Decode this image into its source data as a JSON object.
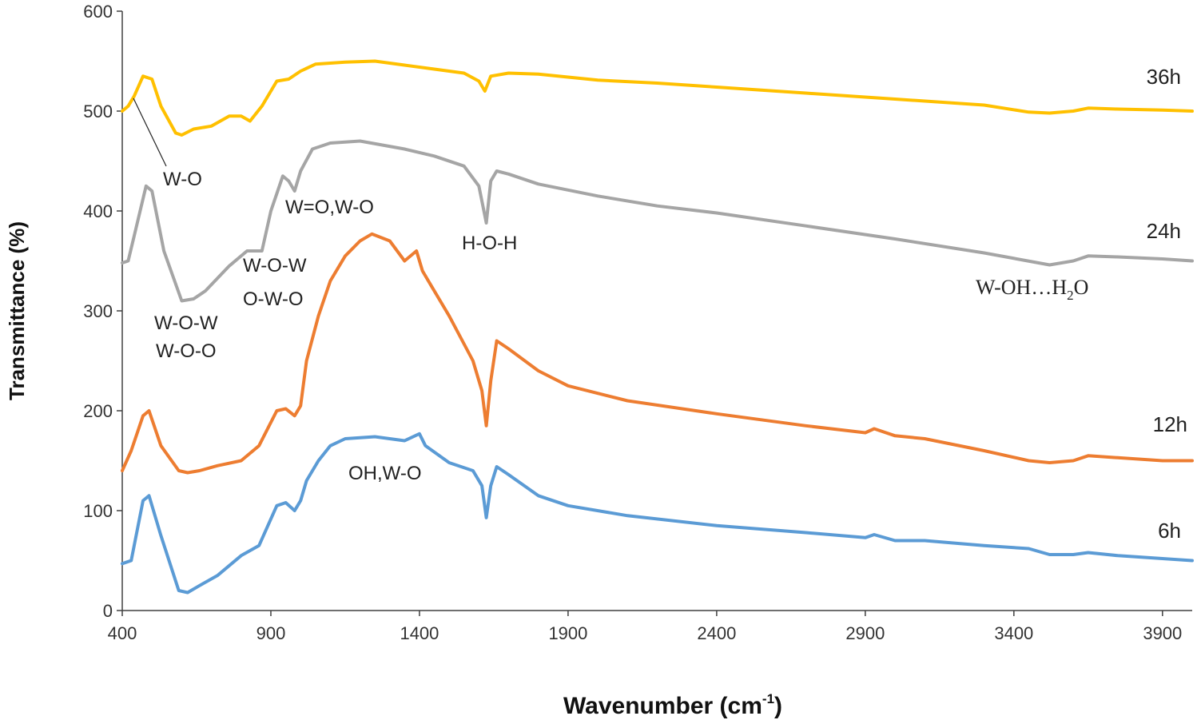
{
  "chart_data": {
    "type": "line",
    "xlabel": "Wavenumber (cm",
    "xlabel_sup": "-1",
    "xlabel_end": ")",
    "ylabel": "Transmittance (%)",
    "xlim": [
      400,
      4000
    ],
    "ylim": [
      0,
      600
    ],
    "xticks": [
      "400",
      "900",
      "1400",
      "1900",
      "2400",
      "2900",
      "3400",
      "3900"
    ],
    "yticks": [
      "0",
      "100",
      "200",
      "300",
      "400",
      "500",
      "600"
    ],
    "grid": false,
    "colors": {
      "6h": "#5b9bd5",
      "12h": "#ed7d31",
      "24h": "#a5a5a5",
      "36h": "#ffc000"
    },
    "series": [
      {
        "name": "6h",
        "x": [
          400,
          430,
          470,
          490,
          530,
          590,
          620,
          660,
          720,
          800,
          860,
          920,
          950,
          980,
          1000,
          1020,
          1060,
          1100,
          1150,
          1250,
          1350,
          1400,
          1420,
          1500,
          1580,
          1610,
          1625,
          1640,
          1660,
          1700,
          1800,
          1900,
          2100,
          2400,
          2700,
          2900,
          2930,
          3000,
          3100,
          3300,
          3450,
          3520,
          3600,
          3650,
          3750,
          3900,
          4000
        ],
        "y": [
          47,
          50,
          110,
          115,
          75,
          20,
          18,
          25,
          35,
          55,
          65,
          105,
          108,
          100,
          110,
          130,
          150,
          165,
          172,
          174,
          170,
          177,
          165,
          148,
          140,
          125,
          93,
          125,
          144,
          136,
          115,
          105,
          95,
          85,
          78,
          73,
          76,
          70,
          70,
          65,
          62,
          56,
          56,
          58,
          55,
          52,
          50
        ]
      },
      {
        "name": "12h",
        "x": [
          400,
          430,
          470,
          490,
          530,
          590,
          620,
          660,
          720,
          800,
          860,
          920,
          950,
          980,
          1000,
          1020,
          1060,
          1100,
          1150,
          1200,
          1240,
          1300,
          1350,
          1390,
          1410,
          1440,
          1500,
          1580,
          1610,
          1625,
          1640,
          1660,
          1700,
          1800,
          1900,
          2100,
          2400,
          2700,
          2900,
          2930,
          3000,
          3100,
          3300,
          3450,
          3520,
          3600,
          3650,
          3750,
          3900,
          4000
        ],
        "y": [
          140,
          160,
          195,
          200,
          165,
          140,
          138,
          140,
          145,
          150,
          165,
          200,
          202,
          195,
          205,
          250,
          295,
          330,
          355,
          370,
          377,
          370,
          350,
          360,
          340,
          325,
          295,
          250,
          220,
          185,
          230,
          270,
          262,
          240,
          225,
          210,
          197,
          185,
          178,
          182,
          175,
          172,
          160,
          150,
          148,
          150,
          155,
          153,
          150,
          150
        ]
      },
      {
        "name": "24h",
        "x": [
          400,
          420,
          440,
          480,
          500,
          540,
          600,
          640,
          680,
          760,
          820,
          870,
          900,
          940,
          960,
          980,
          1000,
          1040,
          1100,
          1200,
          1350,
          1450,
          1550,
          1600,
          1625,
          1640,
          1660,
          1700,
          1800,
          2000,
          2200,
          2400,
          2700,
          3000,
          3300,
          3520,
          3600,
          3650,
          3750,
          3900,
          4000
        ],
        "y": [
          348,
          350,
          375,
          425,
          420,
          360,
          310,
          312,
          320,
          345,
          360,
          360,
          400,
          435,
          430,
          420,
          440,
          462,
          468,
          470,
          462,
          455,
          445,
          425,
          388,
          430,
          440,
          437,
          427,
          415,
          405,
          398,
          385,
          372,
          358,
          346,
          350,
          355,
          354,
          352,
          350
        ]
      },
      {
        "name": "36h",
        "x": [
          400,
          420,
          440,
          470,
          500,
          530,
          580,
          600,
          640,
          700,
          760,
          800,
          830,
          870,
          920,
          960,
          1000,
          1050,
          1150,
          1250,
          1350,
          1450,
          1550,
          1600,
          1620,
          1640,
          1700,
          1800,
          2000,
          2200,
          2400,
          2700,
          3000,
          3300,
          3450,
          3520,
          3600,
          3650,
          3750,
          3900,
          4000
        ],
        "y": [
          500,
          505,
          515,
          535,
          532,
          505,
          478,
          476,
          482,
          485,
          495,
          495,
          490,
          505,
          530,
          532,
          540,
          547,
          549,
          550,
          546,
          542,
          538,
          530,
          520,
          535,
          538,
          537,
          531,
          528,
          524,
          518,
          512,
          506,
          499,
          498,
          500,
          503,
          502,
          501,
          500
        ]
      }
    ],
    "annotations": {
      "w_o": "W-O",
      "w_o_w_a": "W-O-W",
      "w_o_o": "W-O-O",
      "w_o_w_b": "W-O-W",
      "o_w_o": "O-W-O",
      "w_eq_o": "W=O,W-O",
      "h_o_h": "H-O-H",
      "oh_w_o": "OH,W-O",
      "w_oh_h2o_a": "W-OH…H",
      "w_oh_h2o_sub": "2",
      "w_oh_h2o_b": "O"
    }
  }
}
